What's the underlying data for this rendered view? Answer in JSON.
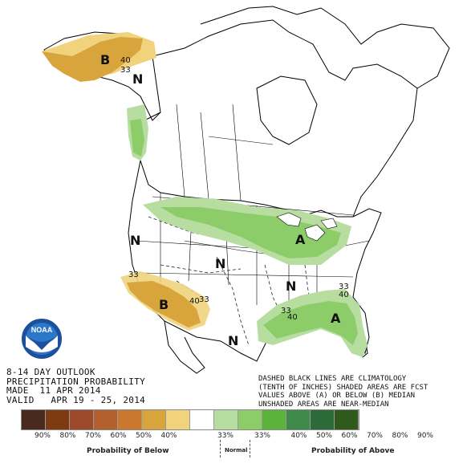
{
  "outlook": {
    "line1": "8-14 DAY OUTLOOK",
    "line2": "PRECIPITATION PROBABILITY",
    "line3": "MADE  11 APR 2014",
    "line4": "VALID   APR 19 - 25, 2014"
  },
  "notes": {
    "line1": "DASHED BLACK LINES ARE CLIMATOLOGY",
    "line2": "(TENTH OF INCHES) SHADED AREAS ARE FCST",
    "line3": "VALUES ABOVE (A) OR BELOW (B) MEDIAN",
    "line4": "UNSHADED AREAS ARE NEAR-MEDIAN"
  },
  "logo": {
    "text": "NOAA"
  },
  "map_labels": {
    "alaska_below": "B",
    "alaska_normal": "N",
    "alaska_c40": "40",
    "alaska_c33": "33",
    "west_normal": "N",
    "central_normal": "N",
    "south_normal": "N",
    "southeast_normal": "N",
    "southwest_below": "B",
    "sw_c33": "33",
    "sw_c40": "40",
    "sw_c33b": "33",
    "great_lakes_above": "A",
    "southeast_above": "A",
    "se_c33": "33",
    "se_c40": "40",
    "se_c33b": "33",
    "se_c40b": "40"
  },
  "legend": {
    "below_caption": "Probability of Below",
    "normal_caption": "Normal",
    "above_caption": "Probability of Above",
    "ticks": [
      "90%",
      "80%",
      "70%",
      "60%",
      "50%",
      "40%",
      "33%",
      "33%",
      "40%",
      "50%",
      "60%",
      "70%",
      "80%",
      "90%"
    ],
    "colors": [
      "#4a2a1c",
      "#7f3a12",
      "#9c4a2a",
      "#b3602e",
      "#c9782e",
      "#d8a53c",
      "#f0d37c",
      "#ffffff",
      "#b7dea0",
      "#8ccd6a",
      "#5bb33a",
      "#3f8a4a",
      "#2c6a3a",
      "#2f5a1c"
    ]
  },
  "colors": {
    "below_40": "#d8a53c",
    "below_33": "#f0d37c",
    "above_40": "#8ccd6a",
    "above_33": "#b7dea0"
  }
}
